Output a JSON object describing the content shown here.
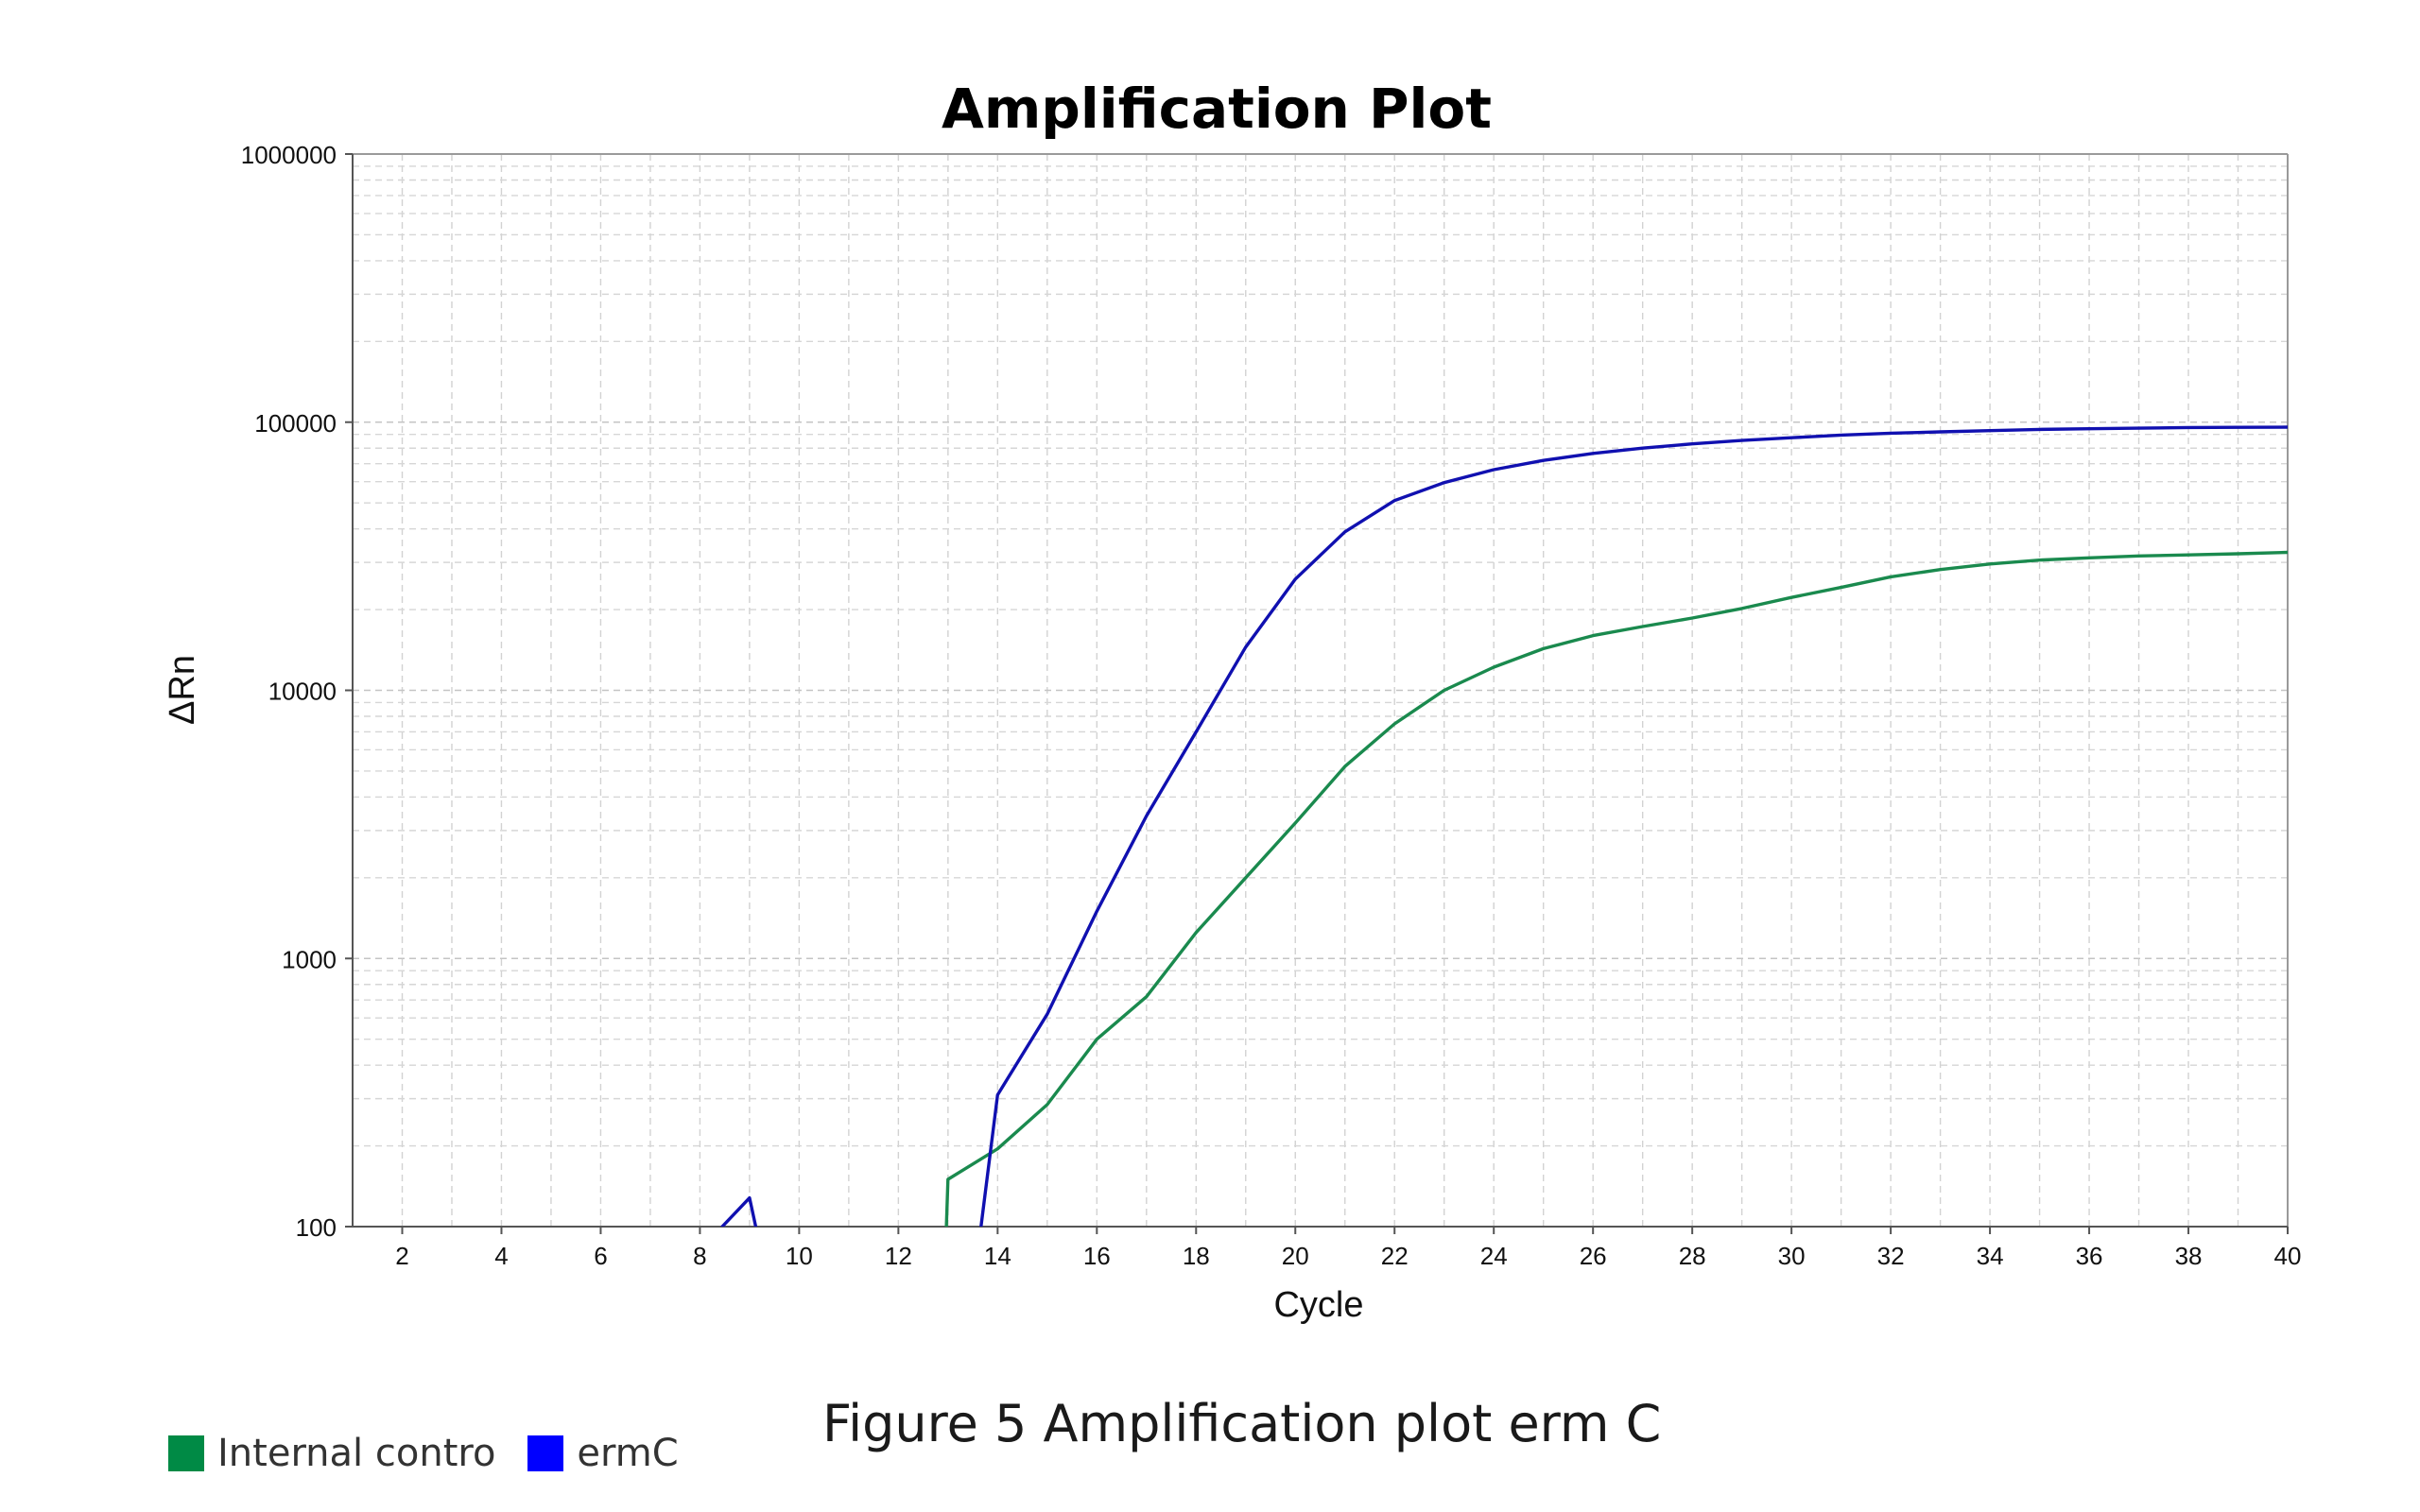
{
  "caption": "Figure 5 Amplification plot erm C",
  "legend": [
    {
      "label": "Internal contro",
      "color": "#008a45"
    },
    {
      "label": "ermC",
      "color": "#0000ff"
    }
  ],
  "chart_data": {
    "type": "line",
    "title": "Amplification Plot",
    "xlabel": "Cycle",
    "ylabel": "ΔRn",
    "xlim": [
      1,
      40
    ],
    "ylim": [
      100,
      1000000
    ],
    "yscale": "log",
    "grid": true,
    "x_ticks": [
      2,
      4,
      6,
      8,
      10,
      12,
      14,
      16,
      18,
      20,
      22,
      24,
      26,
      28,
      30,
      32,
      34,
      36,
      38,
      40
    ],
    "y_ticks": [
      100,
      1000,
      10000,
      100000,
      1000000
    ],
    "y_tick_labels": [
      "100",
      "1000",
      "10000",
      "100000",
      "1000000"
    ],
    "series": [
      {
        "name": "Internal contro",
        "color": "#1a8a4e",
        "points": [
          [
            12.95,
            80
          ],
          [
            13.0,
            150
          ],
          [
            14,
            195
          ],
          [
            15,
            285
          ],
          [
            16,
            500
          ],
          [
            17,
            720
          ],
          [
            18,
            1250
          ],
          [
            19,
            2000
          ],
          [
            20,
            3200
          ],
          [
            21,
            5200
          ],
          [
            22,
            7500
          ],
          [
            23,
            10000
          ],
          [
            24,
            12200
          ],
          [
            25,
            14300
          ],
          [
            26,
            16000
          ],
          [
            27,
            17300
          ],
          [
            28,
            18600
          ],
          [
            29,
            20200
          ],
          [
            30,
            22200
          ],
          [
            31,
            24200
          ],
          [
            32,
            26500
          ],
          [
            33,
            28200
          ],
          [
            34,
            29600
          ],
          [
            35,
            30600
          ],
          [
            36,
            31200
          ],
          [
            37,
            31700
          ],
          [
            38,
            32000
          ],
          [
            39,
            32300
          ],
          [
            40,
            32700
          ]
        ]
      },
      {
        "name": "ermC",
        "color": "#1010b0",
        "points": [
          [
            8.35,
            80
          ],
          [
            8.45,
            100
          ],
          [
            9.0,
            128
          ],
          [
            9.15,
            95
          ],
          [
            9.2,
            80
          ],
          [
            13.6,
            80
          ],
          [
            14,
            310
          ],
          [
            15,
            620
          ],
          [
            16,
            1500
          ],
          [
            17,
            3400
          ],
          [
            18,
            7000
          ],
          [
            19,
            14500
          ],
          [
            20,
            26000
          ],
          [
            21,
            39000
          ],
          [
            22,
            51000
          ],
          [
            23,
            59500
          ],
          [
            24,
            66500
          ],
          [
            25,
            72000
          ],
          [
            26,
            76500
          ],
          [
            27,
            80000
          ],
          [
            28,
            83000
          ],
          [
            29,
            85500
          ],
          [
            30,
            87500
          ],
          [
            31,
            89500
          ],
          [
            32,
            91000
          ],
          [
            33,
            92000
          ],
          [
            34,
            93000
          ],
          [
            35,
            94000
          ],
          [
            36,
            94500
          ],
          [
            37,
            95000
          ],
          [
            38,
            95500
          ],
          [
            39,
            95700
          ],
          [
            40,
            95800
          ]
        ]
      }
    ]
  }
}
